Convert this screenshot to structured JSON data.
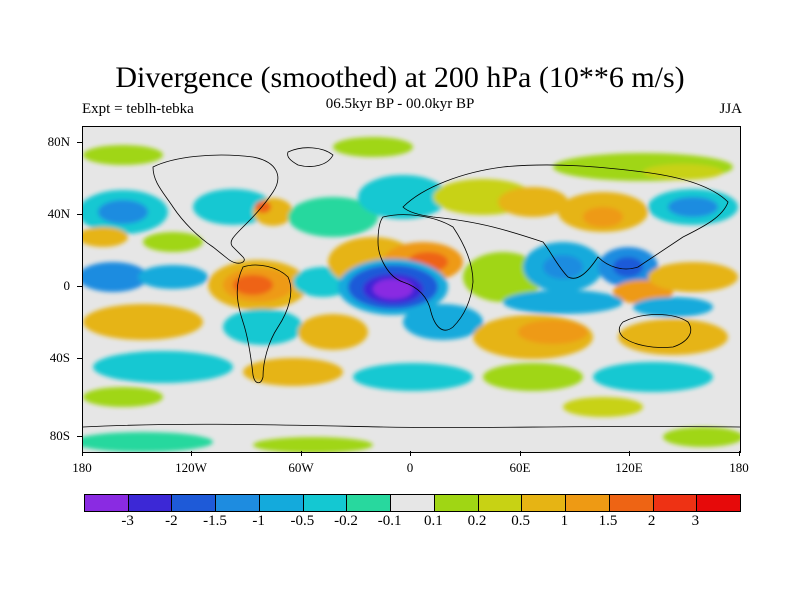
{
  "title": "Divergence (smoothed) at 200 hPa (10**6 m/s)",
  "subtitle_left": "Expt = teblh-tebka",
  "subtitle_center": "06.5kyr BP - 00.0kyr BP",
  "subtitle_right": "JJA",
  "lat_labels": [
    "80N",
    "40N",
    "0",
    "40S",
    "80S"
  ],
  "lon_labels": [
    "180",
    "120W",
    "60W",
    "0",
    "60E",
    "120E",
    "180"
  ],
  "colorbar": {
    "colors": [
      "#8a2be2",
      "#3c28d6",
      "#1e5ad8",
      "#1e8ce0",
      "#14aadc",
      "#14c8d2",
      "#28d89e",
      "#e6e6e6",
      "#a0d614",
      "#c8d214",
      "#e6b414",
      "#ee9a14",
      "#ee6414",
      "#ee3214",
      "#e60a0a"
    ],
    "labels": [
      "-3",
      "-2",
      "-1.5",
      "-1",
      "-0.5",
      "-0.2",
      "-0.1",
      "0.1",
      "0.2",
      "0.5",
      "1",
      "1.5",
      "2",
      "3"
    ]
  }
}
